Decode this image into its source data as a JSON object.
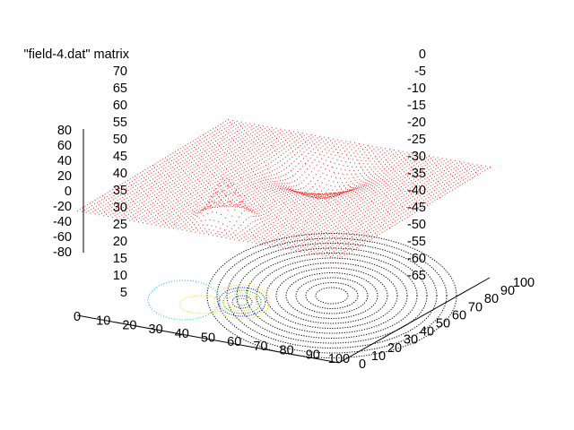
{
  "chart_data": {
    "type": "surface3d",
    "series": [
      {
        "name": "\"field-4.dat\" matrix",
        "style": "red dotted mesh surface with contour projection on base"
      }
    ],
    "x_ticks": [
      "0",
      "10",
      "20",
      "30",
      "40",
      "50",
      "60",
      "70",
      "80",
      "90",
      "100"
    ],
    "y_ticks": [
      "0",
      "10",
      "20",
      "30",
      "40",
      "50",
      "60",
      "70",
      "80",
      "90",
      "100"
    ],
    "z_ticks": [
      "80",
      "60",
      "40",
      "20",
      "0",
      "-20",
      "-40",
      "-60",
      "-80"
    ],
    "contour_levels": [
      "70",
      "65",
      "60",
      "55",
      "50",
      "45",
      "40",
      "35",
      "30",
      "25",
      "20",
      "15",
      "10",
      "5"
    ],
    "contour_levels_negative": [
      "0",
      "-5",
      "-10",
      "-15",
      "-20",
      "-25",
      "-30",
      "-35",
      "-40",
      "-45",
      "-50",
      "-55",
      "-60",
      "-65"
    ],
    "xlim": [
      0,
      100
    ],
    "ylim": [
      0,
      100
    ],
    "zlim": [
      -80,
      80
    ],
    "grid": false
  },
  "colors": {
    "surface": "#ff0000",
    "axes": "#000000",
    "contour_positive_high": "#00c8c8",
    "contour_mid": "#ffd700",
    "contour_low": "#0000ff",
    "contour_base": "#000000",
    "contour_green": "#00a000"
  }
}
